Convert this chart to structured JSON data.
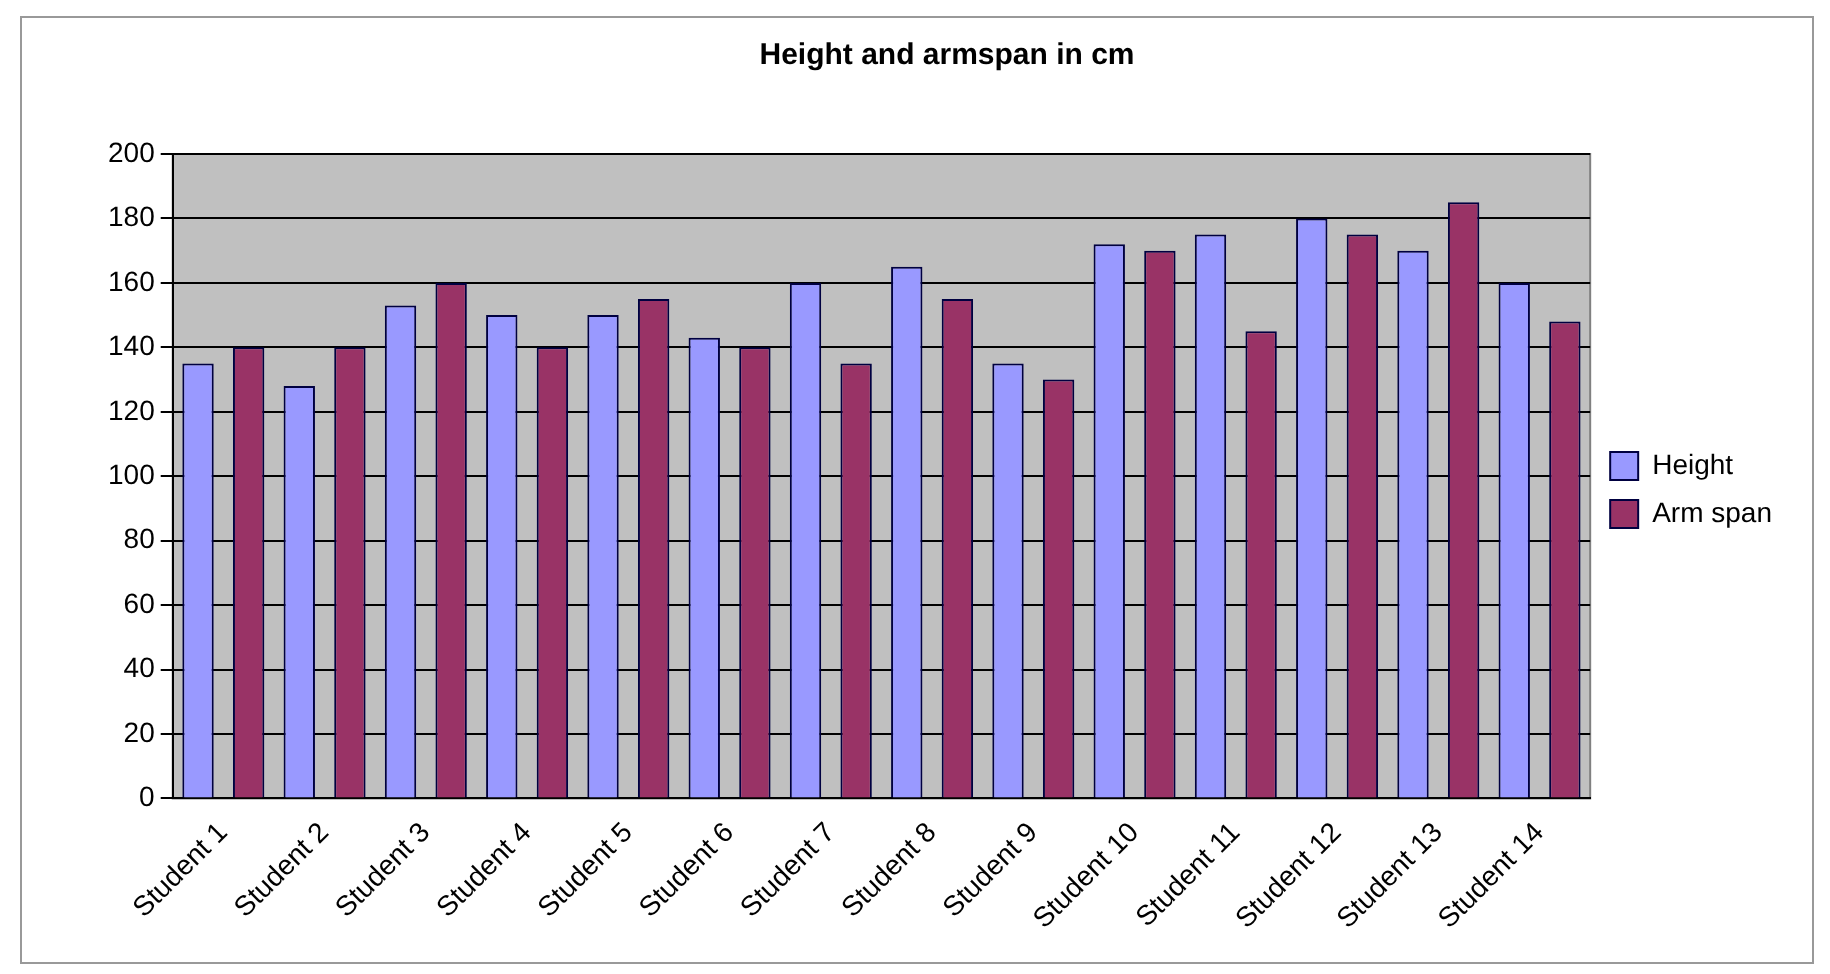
{
  "chart_data": {
    "type": "bar",
    "title": "Height and armspan in cm",
    "categories": [
      "Student 1",
      "Student 2",
      "Student 3",
      "Student 4",
      "Student 5",
      "Student 6",
      "Student 7",
      "Student 8",
      "Student 9",
      "Student 10",
      "Student 11",
      "Student 12",
      "Student 13",
      "Student 14"
    ],
    "series": [
      {
        "name": "Height",
        "color": "#9999ff",
        "values": [
          135,
          128,
          153,
          150,
          150,
          143,
          160,
          165,
          135,
          172,
          175,
          180,
          170,
          160
        ]
      },
      {
        "name": "Arm span",
        "color": "#993366",
        "values": [
          140,
          140,
          160,
          140,
          155,
          140,
          135,
          155,
          130,
          170,
          145,
          175,
          185,
          148
        ]
      }
    ],
    "ylim": [
      0,
      200
    ],
    "yticks": [
      0,
      20,
      40,
      60,
      80,
      100,
      120,
      140,
      160,
      180,
      200
    ],
    "grid": "y",
    "legend": "right"
  }
}
